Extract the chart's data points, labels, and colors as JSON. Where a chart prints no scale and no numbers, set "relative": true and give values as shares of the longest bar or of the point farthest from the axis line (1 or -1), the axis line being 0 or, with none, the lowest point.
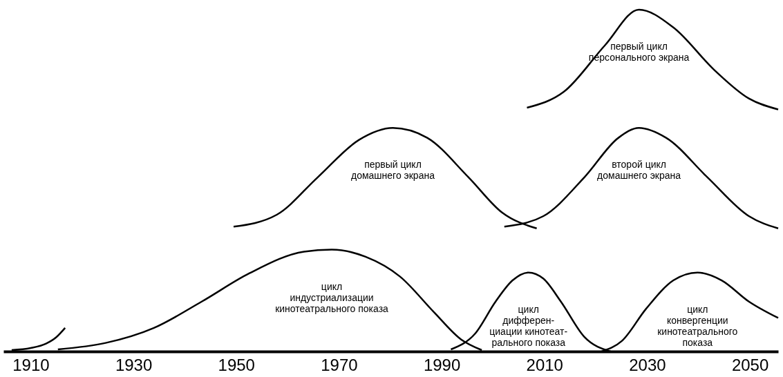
{
  "chart_data": {
    "type": "line",
    "relative": true,
    "grid": false,
    "legend": false,
    "marker": "none",
    "line_style": "solid",
    "tick_labels": "x",
    "xlim": [
      1904.7,
      2055.5
    ],
    "xticks": [
      1910,
      1930,
      1950,
      1970,
      1990,
      2010,
      2030,
      2050
    ],
    "series": [
      {
        "color": "#000000",
        "x": [
          1906.3,
          1910,
          1913,
          1915,
          1916.7
        ],
        "values": [
          0.004,
          0.01,
          0.023,
          0.042,
          0.069
        ]
      },
      {
        "name": "цикл\nиндустриализации\nкинотеатрального показа",
        "color": "#000000",
        "x": [
          1915.3,
          1924.6,
          1934.0,
          1943.3,
          1952.6,
          1963.2,
          1968.6,
          1975.2,
          1981.9,
          1988.5,
          1993.8,
          1997.8
        ],
        "values": [
          0.006,
          0.025,
          0.069,
          0.146,
          0.229,
          0.292,
          0.298,
          0.277,
          0.219,
          0.115,
          0.035,
          0.004
        ]
      },
      {
        "name": "цикл\nдифферен-\nциации кинотеат-\nрального показа",
        "color": "#000000",
        "x": [
          1991.8,
          1996.5,
          2000.5,
          2003.8,
          2006.9,
          2009.8,
          2013.2,
          2017.8,
          2022.9
        ],
        "values": [
          0.006,
          0.052,
          0.146,
          0.208,
          0.231,
          0.213,
          0.146,
          0.042,
          0.0
        ]
      },
      {
        "name": "цикл\nконвергенции\nкинотеатрального\nпоказа",
        "color": "#000000",
        "x": [
          2021.1,
          2025.1,
          2029.8,
          2035.1,
          2039.8,
          2044.5,
          2049.8,
          2055.5
        ],
        "values": [
          0.0,
          0.031,
          0.125,
          0.208,
          0.231,
          0.208,
          0.146,
          0.098
        ]
      },
      {
        "name": "первый цикл\nдомашнего экрана",
        "color": "#000000",
        "x": [
          1949.5,
          1957.9,
          1965.9,
          1973.9,
          1980.5,
          1987.2,
          1995.2,
          2001.8,
          2008.5
        ],
        "values": [
          0.365,
          0.4,
          0.51,
          0.619,
          0.654,
          0.625,
          0.51,
          0.406,
          0.36
        ]
      },
      {
        "name": "второй цикл\nдомашнего экрана",
        "color": "#000000",
        "x": [
          2002.2,
          2009.8,
          2017.8,
          2024.4,
          2028.4,
          2033.7,
          2041.7,
          2049.8,
          2055.5
        ],
        "values": [
          0.365,
          0.396,
          0.51,
          0.625,
          0.654,
          0.625,
          0.51,
          0.396,
          0.36
        ]
      },
      {
        "name": "первый цикл\nперсонального экрана",
        "color": "#000000",
        "x": [
          2006.6,
          2013.8,
          2021.8,
          2028.4,
          2035.1,
          2043.1,
          2049.8,
          2055.5
        ],
        "values": [
          0.713,
          0.76,
          0.896,
          1.0,
          0.948,
          0.823,
          0.74,
          0.708
        ]
      }
    ]
  }
}
